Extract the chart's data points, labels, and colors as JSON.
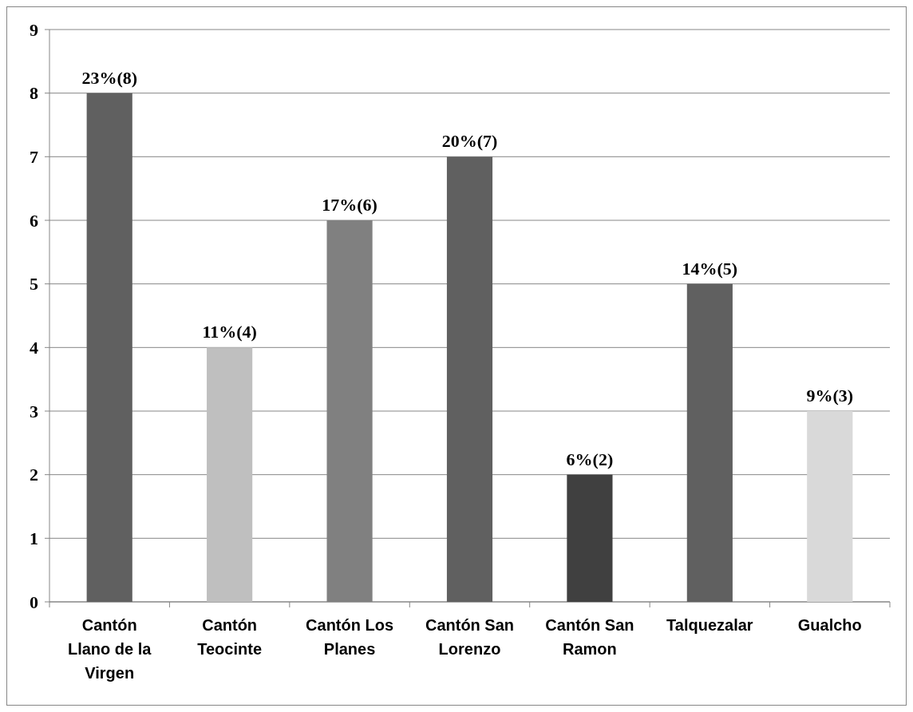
{
  "chart_data": {
    "type": "bar",
    "categories": [
      "Cantón Llano de la Virgen",
      "Cantón Teocinte",
      "Cantón Los Planes",
      "Cantón San Lorenzo",
      "Cantón San Ramon",
      "Talquezalar",
      "Gualcho"
    ],
    "values": [
      8,
      4,
      6,
      7,
      2,
      5,
      3
    ],
    "colors": [
      "#606060",
      "#bfbfbf",
      "#808080",
      "#606060",
      "#404040",
      "#606060",
      "#d9d9d9"
    ],
    "value_labels": [
      "23%(8)",
      "11%(4)",
      "17%(6)",
      "20%(7)",
      "6%(2)",
      "14%(5)",
      "9%(3)"
    ],
    "ylim": [
      0,
      9
    ],
    "yticks": [
      0,
      1,
      2,
      3,
      4,
      5,
      6,
      7,
      8,
      9
    ],
    "grid": "y"
  }
}
